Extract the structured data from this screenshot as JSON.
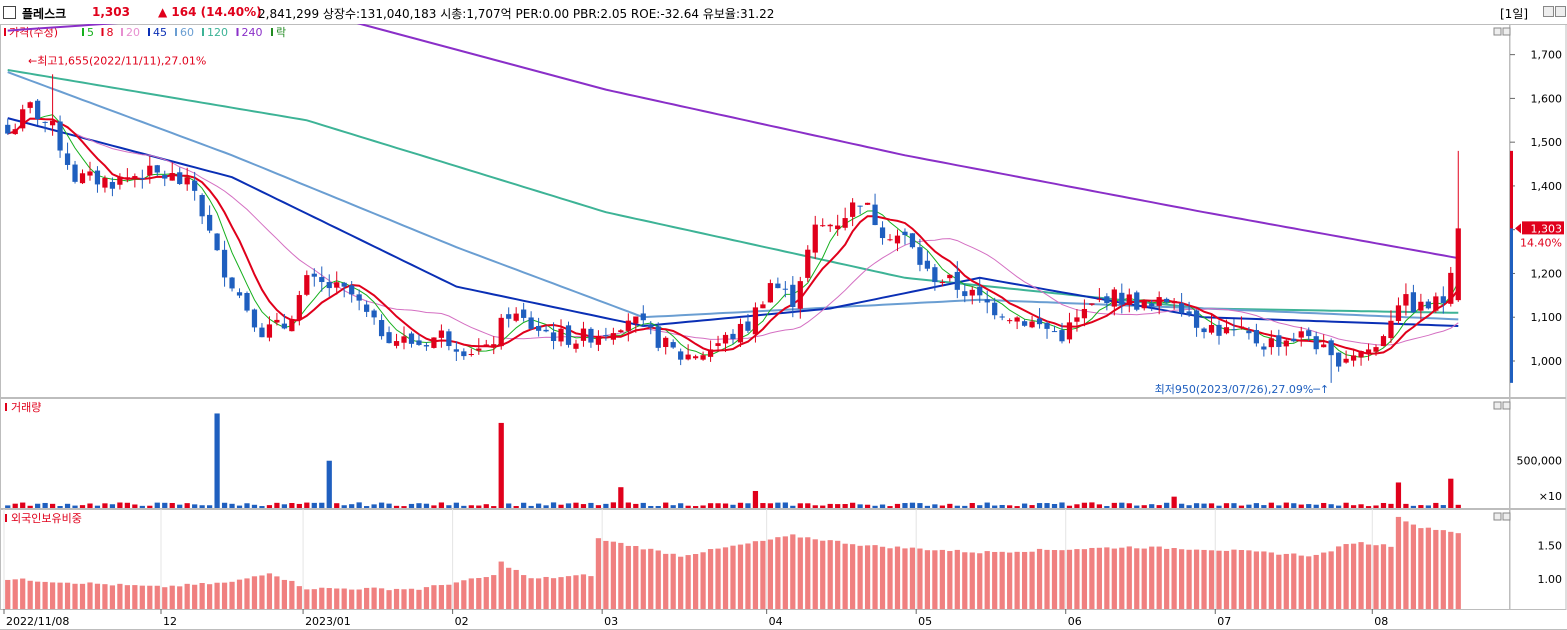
{
  "header": {
    "stock_name": "플레스크",
    "price": "1,303",
    "change": "▲ 164",
    "change_pct": "(14.40%)",
    "details": "2,841,299  상장수:131,040,183  시총:1,707억  PER:0.00  PBR:2.05  ROE:-32.64  유보율:31.22",
    "period": "[1일]"
  },
  "price_panel": {
    "legend": [
      "가격(수정)",
      "5",
      "8",
      "20",
      "45",
      "60",
      "120",
      "240",
      "락"
    ],
    "legend_colors": [
      "#e0001b",
      "#16b01d",
      "#e0001b",
      "#e78fd0",
      "#0a2fb5",
      "#6a9ed2",
      "#3db396",
      "#8a2fc8",
      "#228b22"
    ],
    "high_label": "최고1,655(2022/11/11),27.01%",
    "low_label": "최저950(2023/07/26),27.09%",
    "current_price_tag": "1,303",
    "current_pct_tag": "14.40%",
    "y_ticks": [
      "1,700",
      "1,600",
      "1,500",
      "1,400",
      "1,300",
      "1,200",
      "1,100",
      "1,000"
    ]
  },
  "volume_panel": {
    "legend": "거래량",
    "y_ticks": [
      "500,000",
      "×10"
    ]
  },
  "foreign_panel": {
    "legend": "외국인보유비중",
    "y_ticks": [
      "1.50",
      "1.00"
    ]
  },
  "x_axis_labels": [
    "2022/11/08",
    "12",
    "2023/01",
    "02",
    "03",
    "04",
    "05",
    "06",
    "07",
    "08"
  ],
  "chart_data": {
    "type": "candlestick",
    "title": "",
    "ylim": [
      920,
      1770
    ],
    "series_colors": {
      "up": "#e0001b",
      "down": "#1f5fbf",
      "ma5": "#16b01d",
      "ma8": "#e0001b",
      "ma20": "#d46fc2",
      "ma45": "#0a2fb5",
      "ma60": "#6a9ed2",
      "ma120": "#3db396",
      "ma240": "#8a2fc8"
    },
    "close_anchors": [
      [
        0,
        1520
      ],
      [
        3,
        1580
      ],
      [
        6,
        1530
      ],
      [
        9,
        1420
      ],
      [
        14,
        1410
      ],
      [
        18,
        1430
      ],
      [
        22,
        1420
      ],
      [
        25,
        1390
      ],
      [
        28,
        1240
      ],
      [
        31,
        1150
      ],
      [
        34,
        1070
      ],
      [
        37,
        1080
      ],
      [
        40,
        1180
      ],
      [
        43,
        1170
      ],
      [
        46,
        1150
      ],
      [
        49,
        1080
      ],
      [
        52,
        1050
      ],
      [
        55,
        1040
      ],
      [
        58,
        1060
      ],
      [
        61,
        1030
      ],
      [
        64,
        1020
      ],
      [
        67,
        1110
      ],
      [
        70,
        1080
      ],
      [
        73,
        1060
      ],
      [
        76,
        1050
      ],
      [
        80,
        1070
      ],
      [
        83,
        1100
      ],
      [
        86,
        1060
      ],
      [
        90,
        1010
      ],
      [
        93,
        1020
      ],
      [
        96,
        1050
      ],
      [
        99,
        1080
      ],
      [
        102,
        1180
      ],
      [
        105,
        1140
      ],
      [
        108,
        1300
      ],
      [
        111,
        1320
      ],
      [
        114,
        1370
      ],
      [
        117,
        1300
      ],
      [
        120,
        1280
      ],
      [
        123,
        1200
      ],
      [
        126,
        1180
      ],
      [
        129,
        1150
      ],
      [
        132,
        1120
      ],
      [
        135,
        1100
      ],
      [
        138,
        1080
      ],
      [
        141,
        1060
      ],
      [
        144,
        1110
      ],
      [
        147,
        1150
      ],
      [
        150,
        1140
      ],
      [
        153,
        1120
      ],
      [
        156,
        1150
      ],
      [
        159,
        1090
      ],
      [
        162,
        1070
      ],
      [
        165,
        1060
      ],
      [
        168,
        1040
      ],
      [
        171,
        1050
      ],
      [
        174,
        1060
      ],
      [
        177,
        1000
      ],
      [
        180,
        1020
      ],
      [
        183,
        1030
      ],
      [
        186,
        1140
      ],
      [
        189,
        1120
      ],
      [
        192,
        1139
      ],
      [
        194,
        1303
      ]
    ],
    "volume_peaks": [
      [
        28,
        1000000
      ],
      [
        43,
        500000
      ],
      [
        66,
        900000
      ],
      [
        82,
        220000
      ],
      [
        100,
        180000
      ],
      [
        156,
        120000
      ],
      [
        186,
        270000
      ],
      [
        193,
        310000
      ]
    ],
    "foreign_ratio_anchors": [
      [
        0,
        1.0
      ],
      [
        20,
        0.88
      ],
      [
        30,
        0.95
      ],
      [
        35,
        1.1
      ],
      [
        40,
        0.86
      ],
      [
        55,
        0.85
      ],
      [
        65,
        1.05
      ],
      [
        66,
        1.25
      ],
      [
        70,
        1.0
      ],
      [
        78,
        1.06
      ],
      [
        79,
        1.6
      ],
      [
        90,
        1.35
      ],
      [
        105,
        1.65
      ],
      [
        115,
        1.5
      ],
      [
        130,
        1.4
      ],
      [
        150,
        1.48
      ],
      [
        160,
        1.45
      ],
      [
        175,
        1.35
      ],
      [
        180,
        1.55
      ],
      [
        185,
        1.5
      ],
      [
        186,
        1.95
      ],
      [
        188,
        1.8
      ],
      [
        194,
        1.7
      ]
    ],
    "ma_shapes": {
      "ma120": [
        [
          0,
          1665
        ],
        [
          40,
          1550
        ],
        [
          80,
          1340
        ],
        [
          120,
          1190
        ],
        [
          160,
          1120
        ],
        [
          194,
          1110
        ]
      ],
      "ma240": [
        [
          0,
          1755
        ],
        [
          30,
          1790
        ],
        [
          45,
          1780
        ],
        [
          80,
          1620
        ],
        [
          120,
          1470
        ],
        [
          160,
          1340
        ],
        [
          194,
          1235
        ]
      ],
      "ma60": [
        [
          0,
          1660
        ],
        [
          30,
          1470
        ],
        [
          60,
          1260
        ],
        [
          85,
          1100
        ],
        [
          130,
          1140
        ],
        [
          160,
          1120
        ],
        [
          194,
          1095
        ]
      ],
      "ma45": [
        [
          0,
          1555
        ],
        [
          30,
          1420
        ],
        [
          60,
          1170
        ],
        [
          85,
          1080
        ],
        [
          110,
          1120
        ],
        [
          130,
          1190
        ],
        [
          160,
          1100
        ],
        [
          194,
          1080
        ]
      ]
    }
  }
}
